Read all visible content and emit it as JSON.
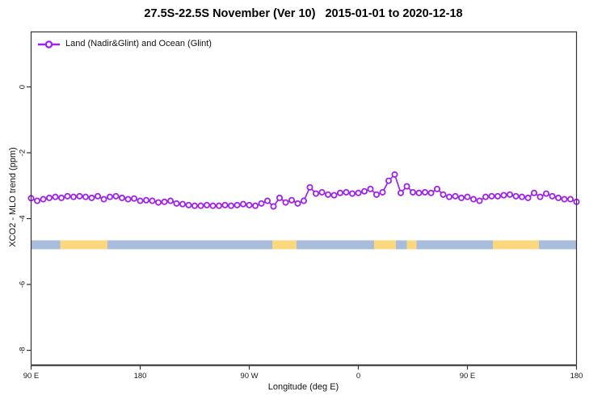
{
  "title": "27.5S-22.5S November (Ver 10)   2015-01-01 to 2020-12-18",
  "legend": {
    "label": "Land (Nadir&Glint) and Ocean (Glint)",
    "marker": "open-circle-on-line",
    "color": "#a020f0"
  },
  "chart_data": {
    "type": "line",
    "title": "27.5S-22.5S November (Ver 10)   2015-01-01 to 2020-12-18",
    "xlabel": "Longitude (deg E)",
    "ylabel": "XCO2 - MLO trend (ppm)",
    "xlim": [
      90,
      540
    ],
    "ylim": [
      -8.44,
      1.67
    ],
    "grid": false,
    "legend_position": "top-left-inside",
    "frame_color": "#333333",
    "x_ticks": [
      {
        "value": 90,
        "label": "90 E"
      },
      {
        "value": 180,
        "label": "180"
      },
      {
        "value": 270,
        "label": "90 W"
      },
      {
        "value": 360,
        "label": "0"
      },
      {
        "value": 450,
        "label": "90 E"
      },
      {
        "value": 540,
        "label": "180"
      }
    ],
    "y_ticks": [
      {
        "value": 0,
        "label": "0"
      },
      {
        "value": -2,
        "label": "-2"
      },
      {
        "value": -4,
        "label": "-4"
      },
      {
        "value": -6,
        "label": "-6"
      },
      {
        "value": -8,
        "label": "-8"
      }
    ],
    "series": [
      {
        "name": "Land (Nadir&Glint) and Ocean (Glint)",
        "color": "#a020f0",
        "marker": "open-circle",
        "x": [
          90,
          95,
          100,
          105,
          110,
          115,
          120,
          125,
          130,
          135,
          140,
          145,
          150,
          155,
          160,
          165,
          170,
          175,
          180,
          185,
          190,
          195,
          200,
          205,
          210,
          215,
          220,
          225,
          230,
          235,
          240,
          245,
          250,
          255,
          260,
          265,
          270,
          275,
          280,
          285,
          290,
          295,
          300,
          305,
          310,
          315,
          320,
          325,
          330,
          335,
          340,
          345,
          350,
          355,
          360,
          365,
          370,
          375,
          380,
          385,
          390,
          395,
          400,
          405,
          410,
          415,
          420,
          425,
          430,
          435,
          440,
          445,
          450,
          455,
          460,
          465,
          470,
          475,
          480,
          485,
          490,
          495,
          500,
          505,
          510,
          515,
          520,
          525,
          530,
          535,
          540
        ],
        "values": [
          -3.38,
          -3.46,
          -3.41,
          -3.37,
          -3.34,
          -3.37,
          -3.32,
          -3.34,
          -3.32,
          -3.34,
          -3.37,
          -3.32,
          -3.41,
          -3.34,
          -3.32,
          -3.37,
          -3.41,
          -3.39,
          -3.46,
          -3.44,
          -3.46,
          -3.51,
          -3.49,
          -3.46,
          -3.54,
          -3.56,
          -3.59,
          -3.61,
          -3.61,
          -3.59,
          -3.61,
          -3.61,
          -3.59,
          -3.61,
          -3.59,
          -3.56,
          -3.59,
          -3.61,
          -3.54,
          -3.46,
          -3.63,
          -3.37,
          -3.51,
          -3.44,
          -3.54,
          -3.46,
          -3.05,
          -3.24,
          -3.2,
          -3.27,
          -3.29,
          -3.22,
          -3.2,
          -3.24,
          -3.22,
          -3.17,
          -3.1,
          -3.27,
          -3.2,
          -2.85,
          -2.66,
          -3.22,
          -3.02,
          -3.2,
          -3.22,
          -3.2,
          -3.22,
          -3.1,
          -3.27,
          -3.34,
          -3.32,
          -3.37,
          -3.34,
          -3.41,
          -3.46,
          -3.34,
          -3.32,
          -3.32,
          -3.29,
          -3.27,
          -3.32,
          -3.34,
          -3.37,
          -3.22,
          -3.34,
          -3.24,
          -3.32,
          -3.37,
          -3.41,
          -3.41,
          -3.49
        ]
      }
    ],
    "land_ocean_band": {
      "y_top": -4.66,
      "y_bottom": -4.93,
      "colors": {
        "ocean": "#a7bddb",
        "land": "#fbd77e"
      },
      "segments": [
        {
          "from": 90,
          "to": 114,
          "type": "ocean"
        },
        {
          "from": 114,
          "to": 153,
          "type": "land"
        },
        {
          "from": 153,
          "to": 289,
          "type": "ocean"
        },
        {
          "from": 289,
          "to": 309,
          "type": "land"
        },
        {
          "from": 309,
          "to": 373,
          "type": "ocean"
        },
        {
          "from": 373,
          "to": 391,
          "type": "land"
        },
        {
          "from": 391,
          "to": 400,
          "type": "ocean"
        },
        {
          "from": 400,
          "to": 408,
          "type": "land"
        },
        {
          "from": 408,
          "to": 471,
          "type": "ocean"
        },
        {
          "from": 471,
          "to": 509,
          "type": "land"
        },
        {
          "from": 509,
          "to": 540,
          "type": "ocean"
        }
      ]
    }
  }
}
